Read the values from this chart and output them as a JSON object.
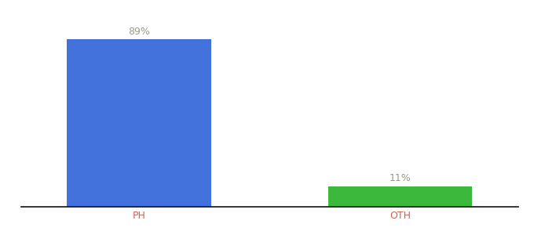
{
  "categories": [
    "PH",
    "OTH"
  ],
  "values": [
    89,
    11
  ],
  "bar_colors": [
    "#4472dd",
    "#3cb83c"
  ],
  "labels": [
    "89%",
    "11%"
  ],
  "ylim": [
    0,
    100
  ],
  "background_color": "#ffffff",
  "label_color": "#999988",
  "axis_line_color": "#111111",
  "bar_width": 0.55,
  "label_fontsize": 9,
  "tick_fontsize": 9,
  "tick_color": "#cc6655"
}
